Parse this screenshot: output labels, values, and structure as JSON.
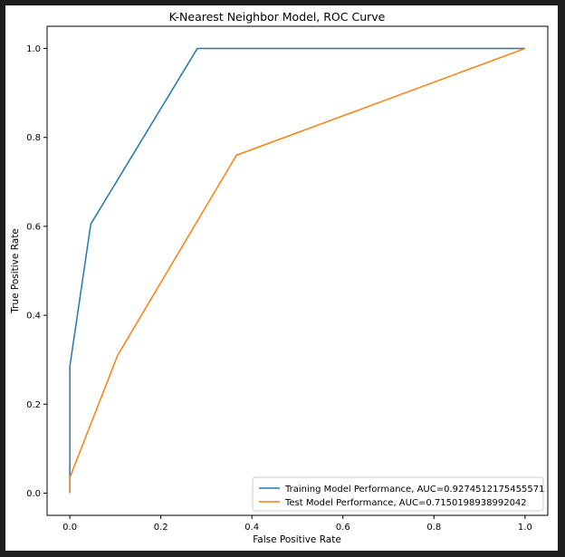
{
  "chart_data": {
    "type": "line",
    "title": "K-Nearest Neighbor Model, ROC Curve",
    "xlabel": "False Positive Rate",
    "ylabel": "True Positive Rate",
    "xlim": [
      -0.05,
      1.05
    ],
    "ylim": [
      -0.05,
      1.05
    ],
    "xticks": [
      "0.0",
      "0.2",
      "0.4",
      "0.6",
      "0.8",
      "1.0"
    ],
    "yticks": [
      "0.0",
      "0.2",
      "0.4",
      "0.6",
      "0.8",
      "1.0"
    ],
    "grid": false,
    "legend_position": "lower-right",
    "series": [
      {
        "name": "Training Model Performance, AUC=0.9274512175455571",
        "color": "#1f77b4",
        "x": [
          0.0,
          0.0,
          0.0,
          0.046,
          0.28,
          1.0
        ],
        "y": [
          0.0,
          0.035,
          0.285,
          0.605,
          1.0,
          1.0
        ]
      },
      {
        "name": "Test Model Performance, AUC=0.7150198938992042",
        "color": "#ff7f0e",
        "x": [
          0.0,
          0.0,
          0.105,
          0.366,
          1.0
        ],
        "y": [
          0.0,
          0.035,
          0.31,
          0.76,
          1.0
        ]
      }
    ]
  }
}
